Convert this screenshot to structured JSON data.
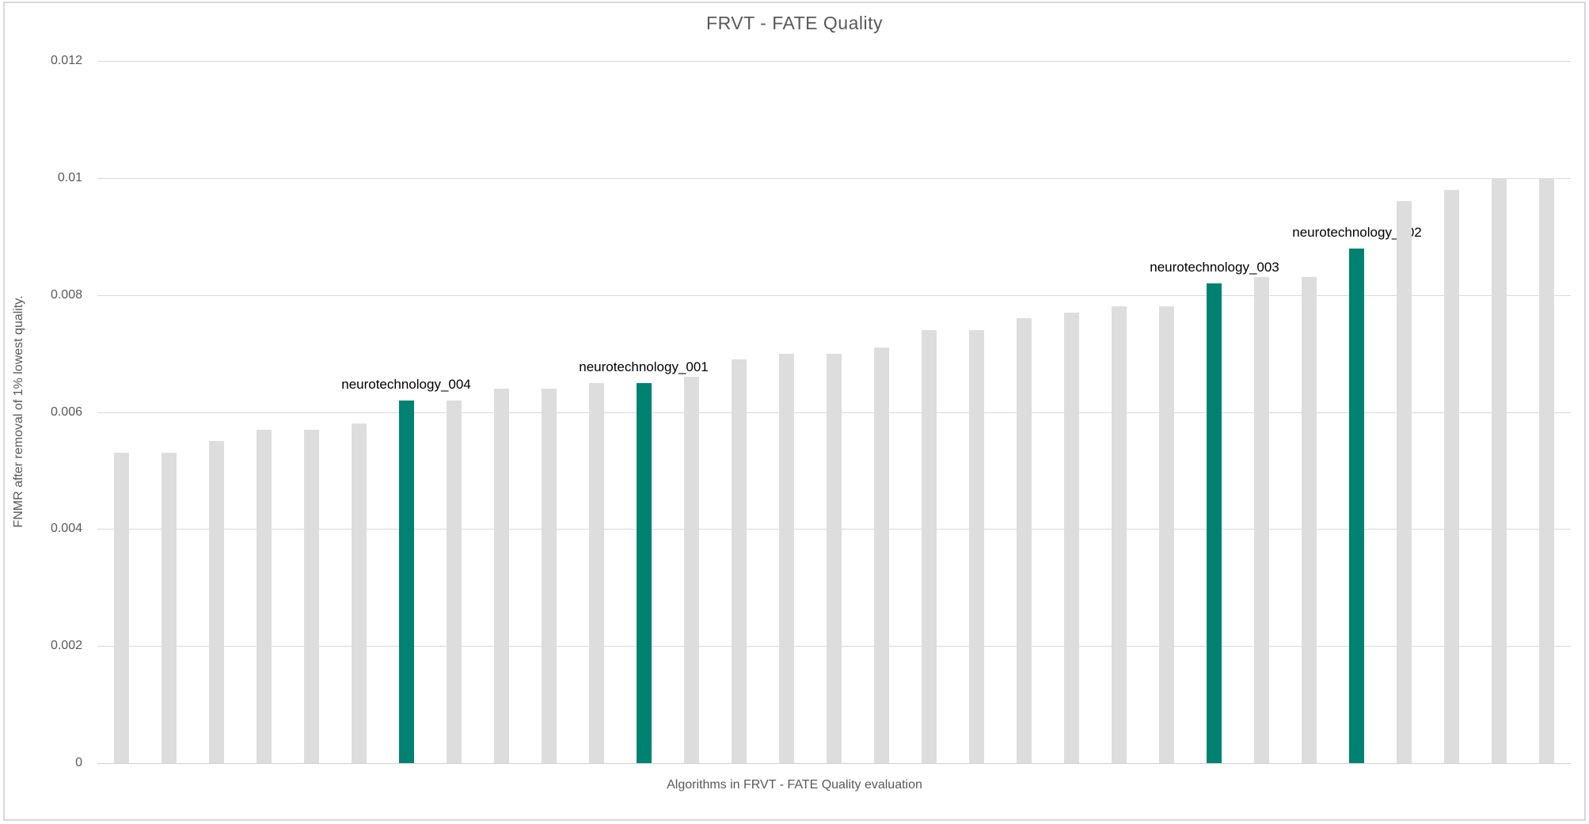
{
  "title": "FRVT - FATE Quality",
  "y_axis": {
    "title": "FNMR after removal of 1% lowest quality.",
    "ticks": [
      {
        "label": "0.012",
        "value": 0.012
      },
      {
        "label": "0.01",
        "value": 0.01
      },
      {
        "label": "0.008",
        "value": 0.008
      },
      {
        "label": "0.006",
        "value": 0.006
      },
      {
        "label": "0.004",
        "value": 0.004
      },
      {
        "label": "0.002",
        "value": 0.002
      },
      {
        "label": "0",
        "value": 0
      }
    ]
  },
  "x_axis": {
    "title": "Algorithms in FRVT - FATE Quality evaluation"
  },
  "colors": {
    "bar_default": "#dddddd",
    "bar_highlight": "#008272",
    "gridline": "#d9d9d9",
    "axis_line": "#cfcfcf",
    "axis_text": "#595959",
    "bar_label_text": "#000000",
    "frame_border": "#d7d7d7"
  },
  "chart_data": {
    "type": "bar",
    "title": "FRVT - FATE Quality",
    "xlabel": "Algorithms in FRVT - FATE Quality evaluation",
    "ylabel": "FNMR after removal of 1% lowest quality.",
    "ylim": [
      0,
      0.012
    ],
    "ytick_step": 0.002,
    "grid": true,
    "legend": "none",
    "x_tick_labels": "none",
    "values": [
      0.0053,
      0.0053,
      0.0055,
      0.0057,
      0.0057,
      0.0058,
      0.0062,
      0.0062,
      0.0064,
      0.0064,
      0.0065,
      0.0065,
      0.0066,
      0.0069,
      0.007,
      0.007,
      0.0071,
      0.0074,
      0.0074,
      0.0076,
      0.0077,
      0.0078,
      0.0078,
      0.0082,
      0.0083,
      0.0083,
      0.0088,
      0.0096,
      0.0098,
      0.01,
      0.01
    ],
    "highlighted": [
      {
        "index": 6,
        "label": "neurotechnology_004"
      },
      {
        "index": 11,
        "label": "neurotechnology_001"
      },
      {
        "index": 23,
        "label": "neurotechnology_003"
      },
      {
        "index": 26,
        "label": "neurotechnology_002"
      }
    ]
  }
}
